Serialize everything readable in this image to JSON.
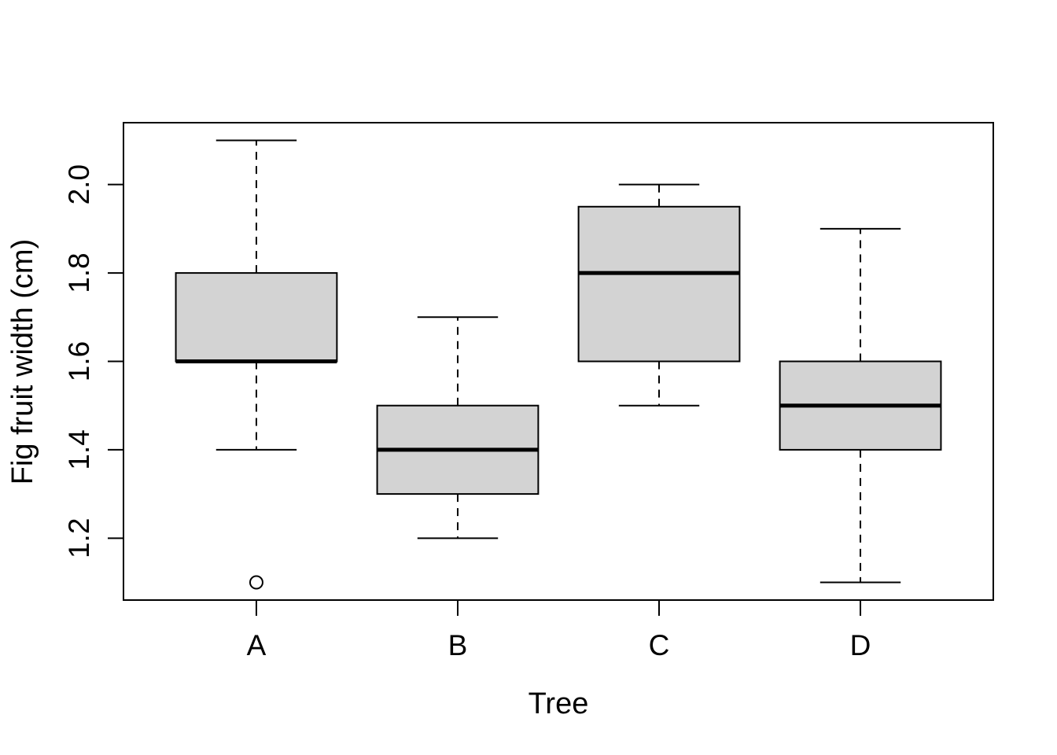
{
  "chart_data": {
    "type": "boxplot",
    "title": "",
    "xlabel": "Tree",
    "ylabel": "Fig fruit width (cm)",
    "categories": [
      "A",
      "B",
      "C",
      "D"
    ],
    "yticks": [
      1.2,
      1.4,
      1.6,
      1.8,
      2.0
    ],
    "ylim": [
      1.06,
      2.14
    ],
    "xlim": [
      0.34,
      4.66
    ],
    "grid": false,
    "legend": null,
    "boxes": [
      {
        "category": "A",
        "position": 1,
        "whisker_low": 1.4,
        "q1": 1.6,
        "median": 1.6,
        "q3": 1.8,
        "whisker_high": 2.1,
        "outliers": [
          1.1
        ]
      },
      {
        "category": "B",
        "position": 2,
        "whisker_low": 1.2,
        "q1": 1.3,
        "median": 1.4,
        "q3": 1.5,
        "whisker_high": 1.7,
        "outliers": []
      },
      {
        "category": "C",
        "position": 3,
        "whisker_low": 1.5,
        "q1": 1.6,
        "median": 1.8,
        "q3": 1.95,
        "whisker_high": 2.0,
        "outliers": []
      },
      {
        "category": "D",
        "position": 4,
        "whisker_low": 1.1,
        "q1": 1.4,
        "median": 1.5,
        "q3": 1.6,
        "whisker_high": 1.9,
        "outliers": []
      }
    ],
    "box_width_units": 0.8,
    "cap_width_units": 0.4,
    "colors": {
      "box_fill": "#d3d3d3",
      "line": "#000000",
      "background": "#ffffff"
    }
  }
}
